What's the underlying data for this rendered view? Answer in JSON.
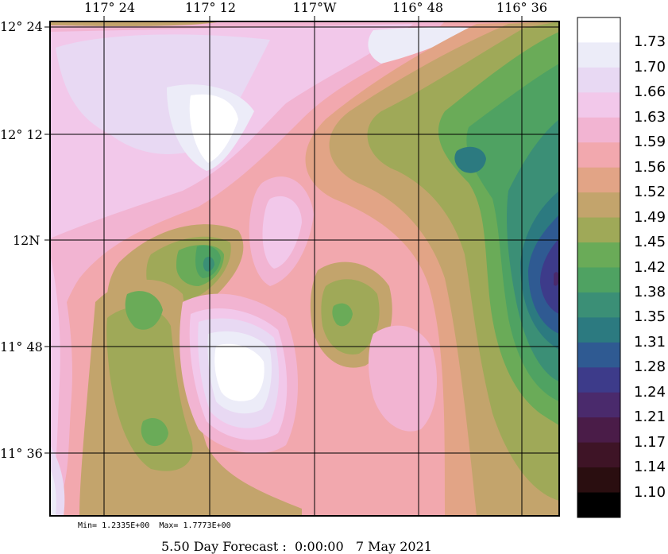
{
  "map": {
    "lon_labels": [
      "117° 24",
      "117° 12",
      "117°W",
      "116° 48",
      "116° 36"
    ],
    "lat_labels": [
      "12° 24",
      "12° 12",
      "12N",
      "11° 48",
      "11° 36"
    ]
  },
  "colorbar": {
    "levels": [
      "1.73",
      "1.70",
      "1.66",
      "1.63",
      "1.59",
      "1.56",
      "1.52",
      "1.49",
      "1.45",
      "1.42",
      "1.38",
      "1.35",
      "1.31",
      "1.28",
      "1.24",
      "1.21",
      "1.17",
      "1.14",
      "1.10"
    ],
    "colors": [
      "#ffffff",
      "#ececf8",
      "#e8d9f3",
      "#f2c8ea",
      "#f2b4d2",
      "#f2a8ae",
      "#e2a486",
      "#c3a46c",
      "#9fa958",
      "#6aab58",
      "#4fa262",
      "#3b8f76",
      "#2c7a80",
      "#2f5a92",
      "#3d3b8a",
      "#4a2a6c",
      "#4a1c48",
      "#3e1426",
      "#2a0e10",
      "#000000"
    ],
    "color_names": [
      "white",
      "lavender-light",
      "lavender",
      "pink-light",
      "pink",
      "rose",
      "salmon",
      "tan",
      "olive",
      "green",
      "green-dark",
      "teal",
      "teal-dark",
      "blue",
      "indigo",
      "purple",
      "maroon",
      "dark-maroon",
      "brown-black",
      "black"
    ]
  },
  "footer": {
    "minmax": "Min= 1.2335E+00  Max= 1.7773E+00",
    "forecast": "5.50 Day Forecast :  0:00:00   7 May 2021"
  }
}
